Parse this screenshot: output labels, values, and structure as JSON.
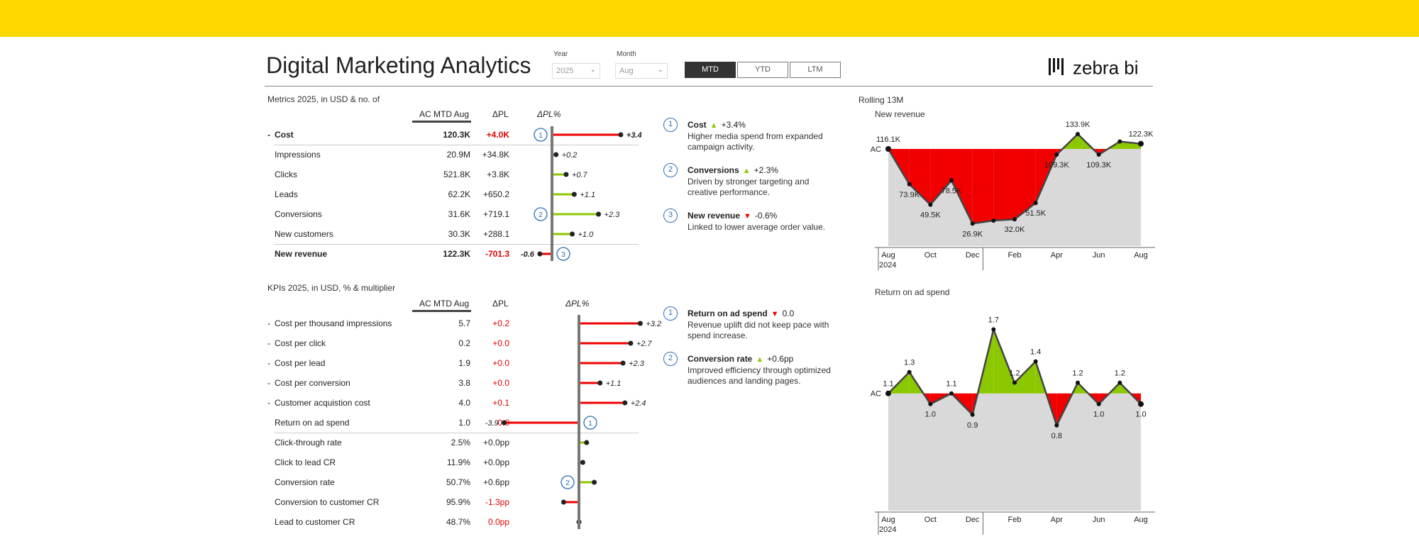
{
  "header": {
    "title": "Digital Marketing Analytics",
    "year_label": "Year",
    "year_value": "2025",
    "month_label": "Month",
    "month_value": "Aug",
    "period_buttons": [
      "MTD",
      "YTD",
      "LTM"
    ],
    "active_period": "MTD",
    "logo_text": "zebra bi"
  },
  "metrics": {
    "title": "Metrics 2025, in USD & no. of",
    "col_ac": "AC MTD Aug",
    "col_dpl": "ΔPL",
    "col_dplp": "ΔPL%",
    "rows": [
      {
        "prefix": "-",
        "label": "Cost",
        "ac": "120.3K",
        "dpl": "+4.0K",
        "pct": 3.4,
        "pct_label": "+3.4",
        "bold": true,
        "dpl_neg": true,
        "bar": "red",
        "callout": "1"
      },
      {
        "prefix": "",
        "label": "Impressions",
        "ac": "20.9M",
        "dpl": "+34.8K",
        "pct": 0.2,
        "pct_label": "+0.2",
        "bold": false,
        "dpl_neg": false,
        "bar": "green",
        "callout": ""
      },
      {
        "prefix": "",
        "label": "Clicks",
        "ac": "521.8K",
        "dpl": "+3.8K",
        "pct": 0.7,
        "pct_label": "+0.7",
        "bold": false,
        "dpl_neg": false,
        "bar": "green",
        "callout": ""
      },
      {
        "prefix": "",
        "label": "Leads",
        "ac": "62.2K",
        "dpl": "+650.2",
        "pct": 1.1,
        "pct_label": "+1.1",
        "bold": false,
        "dpl_neg": false,
        "bar": "green",
        "callout": ""
      },
      {
        "prefix": "",
        "label": "Conversions",
        "ac": "31.6K",
        "dpl": "+719.1",
        "pct": 2.3,
        "pct_label": "+2.3",
        "bold": false,
        "dpl_neg": false,
        "bar": "green",
        "callout": "2"
      },
      {
        "prefix": "",
        "label": "New customers",
        "ac": "30.3K",
        "dpl": "+288.1",
        "pct": 1.0,
        "pct_label": "+1.0",
        "bold": false,
        "dpl_neg": false,
        "bar": "green",
        "callout": ""
      },
      {
        "prefix": "",
        "label": "New revenue",
        "ac": "122.3K",
        "dpl": "-701.3",
        "pct": -0.6,
        "pct_label": "-0.6",
        "bold": true,
        "dpl_neg": true,
        "bar": "red",
        "callout": "3"
      }
    ]
  },
  "kpis": {
    "title": "KPIs 2025, in USD, % & multiplier",
    "col_ac": "AC MTD Aug",
    "col_dpl": "ΔPL",
    "col_dplp": "ΔPL%",
    "rows": [
      {
        "prefix": "-",
        "label": "Cost per thousand impressions",
        "ac": "5.7",
        "dpl": "+0.2",
        "pct": 3.2,
        "pct_label": "+3.2",
        "dpl_neg": true,
        "bar": "red",
        "callout": ""
      },
      {
        "prefix": "-",
        "label": "Cost per click",
        "ac": "0.2",
        "dpl": "+0.0",
        "pct": 2.7,
        "pct_label": "+2.7",
        "dpl_neg": true,
        "bar": "red",
        "callout": ""
      },
      {
        "prefix": "-",
        "label": "Cost per lead",
        "ac": "1.9",
        "dpl": "+0.0",
        "pct": 2.3,
        "pct_label": "+2.3",
        "dpl_neg": true,
        "bar": "red",
        "callout": ""
      },
      {
        "prefix": "-",
        "label": "Cost per conversion",
        "ac": "3.8",
        "dpl": "+0.0",
        "pct": 1.1,
        "pct_label": "+1.1",
        "dpl_neg": true,
        "bar": "red",
        "callout": ""
      },
      {
        "prefix": "-",
        "label": "Customer acquistion cost",
        "ac": "4.0",
        "dpl": "+0.1",
        "pct": 2.4,
        "pct_label": "+2.4",
        "dpl_neg": true,
        "bar": "red",
        "callout": ""
      },
      {
        "prefix": "",
        "label": "Return on ad spend",
        "ac": "1.0",
        "dpl": "0.0",
        "pct": -3.9,
        "pct_label": "-3.9",
        "dpl_neg": true,
        "bar": "red",
        "callout": "1"
      },
      {
        "prefix": "",
        "label": "Click-through rate",
        "ac": "2.5%",
        "dpl": "+0.0pp",
        "pct": 0.4,
        "pct_label": "",
        "dpl_neg": false,
        "bar": "green",
        "callout": ""
      },
      {
        "prefix": "",
        "label": "Click to lead CR",
        "ac": "11.9%",
        "dpl": "+0.0pp",
        "pct": 0.2,
        "pct_label": "",
        "dpl_neg": false,
        "bar": "green",
        "callout": ""
      },
      {
        "prefix": "",
        "label": "Conversion rate",
        "ac": "50.7%",
        "dpl": "+0.6pp",
        "pct": 0.8,
        "pct_label": "",
        "dpl_neg": false,
        "bar": "green",
        "callout": "2"
      },
      {
        "prefix": "",
        "label": "Conversion to customer CR",
        "ac": "95.9%",
        "dpl": "-1.3pp",
        "pct": -0.8,
        "pct_label": "",
        "dpl_neg": true,
        "bar": "red",
        "callout": ""
      },
      {
        "prefix": "",
        "label": "Lead to customer CR",
        "ac": "48.7%",
        "dpl": "0.0pp",
        "pct": 0.0,
        "pct_label": "",
        "dpl_neg": true,
        "bar": "red",
        "callout": ""
      }
    ]
  },
  "notes_metrics": [
    {
      "num": "1",
      "title": "Cost",
      "dir": "up",
      "delta": "+3.4%",
      "text": "Higher media spend from expanded campaign activity."
    },
    {
      "num": "2",
      "title": "Conversions",
      "dir": "up",
      "delta": "+2.3%",
      "text": "Driven by stronger targeting and creative performance."
    },
    {
      "num": "3",
      "title": "New revenue",
      "dir": "down",
      "delta": "-0.6%",
      "text": "Linked to lower average order value."
    }
  ],
  "notes_kpis": [
    {
      "num": "1",
      "title": "Return on ad spend",
      "dir": "down",
      "delta": "0.0",
      "text": "Revenue uplift did not keep pace with spend increase."
    },
    {
      "num": "2",
      "title": "Conversion rate",
      "dir": "up",
      "delta": "+0.6pp",
      "text": "Improved efficiency through optimized audiences and landing pages."
    }
  ],
  "rolling_title": "Rolling 13M",
  "colors": {
    "accent": "#FFD800",
    "red": "#F20000",
    "green": "#8CC800",
    "grey": "#D9D9D9",
    "blue": "#2A6FB8"
  },
  "chart_data": [
    {
      "type": "area",
      "title": "New revenue",
      "reference_label": "AC",
      "reference": 116.1,
      "x": [
        "Aug 2024",
        "Sep",
        "Oct",
        "Nov",
        "Dec",
        "Jan",
        "Feb",
        "Mar",
        "Apr",
        "May",
        "Jun",
        "Jul",
        "Aug"
      ],
      "values": [
        116.1,
        73.9,
        49.5,
        78.5,
        26.9,
        30.5,
        32.0,
        51.5,
        109.3,
        133.9,
        109.3,
        125.0,
        122.3
      ],
      "labels": [
        "116.1K",
        "73.9K",
        "49.5K",
        "78.5K",
        "26.9K",
        "",
        "32.0K",
        "51.5K",
        "109.3K",
        "133.9K",
        "109.3K",
        "",
        "122.3K"
      ],
      "tick_labels": [
        "Aug",
        "Oct",
        "Dec",
        "Feb",
        "Apr",
        "Jun",
        "Aug"
      ],
      "year_label": "2024",
      "ylim": [
        0,
        150
      ]
    },
    {
      "type": "area",
      "title": "Return on ad spend",
      "reference_label": "AC",
      "reference": 1.1,
      "x": [
        "Aug 2024",
        "Sep",
        "Oct",
        "Nov",
        "Dec",
        "Jan",
        "Feb",
        "Mar",
        "Apr",
        "May",
        "Jun",
        "Jul",
        "Aug"
      ],
      "values": [
        1.1,
        1.3,
        1.0,
        1.1,
        0.9,
        1.7,
        1.2,
        1.4,
        0.8,
        1.2,
        1.0,
        1.2,
        1.0
      ],
      "labels": [
        "1.1",
        "1.3",
        "1.0",
        "1.1",
        "0.9",
        "1.7",
        "1.2",
        "1.4",
        "0.8",
        "1.2",
        "1.0",
        "1.2",
        "1.0"
      ],
      "tick_labels": [
        "Aug",
        "Oct",
        "Dec",
        "Feb",
        "Apr",
        "Jun",
        "Aug"
      ],
      "year_label": "2024",
      "ylim": [
        0,
        1.85
      ]
    }
  ]
}
